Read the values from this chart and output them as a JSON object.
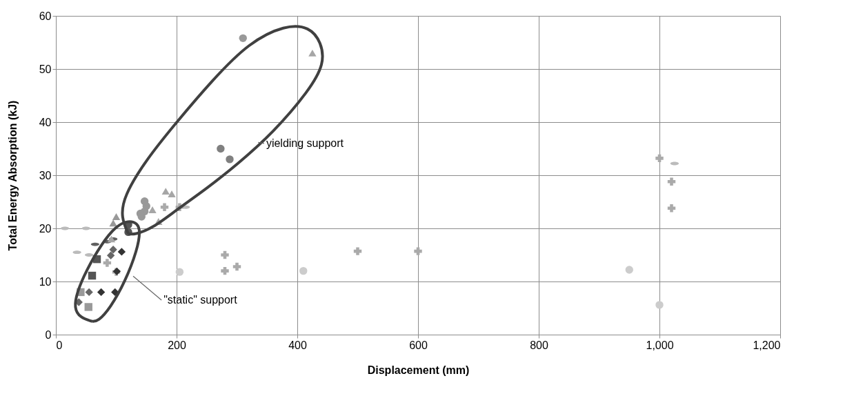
{
  "chart_data": {
    "type": "scatter",
    "xlabel": "Displacement (mm)",
    "ylabel": "Total Energy Absorption (kJ)",
    "xlim": [
      0,
      1200
    ],
    "xticks": [
      0,
      200,
      400,
      600,
      800,
      {
        "value": 1000,
        "label": "1,000"
      },
      {
        "value": 1200,
        "label": "1,200"
      }
    ],
    "ylim": [
      0,
      60
    ],
    "yticks": [
      0,
      10,
      20,
      30,
      40,
      50,
      60
    ],
    "grid": true,
    "series": [
      {
        "color": "#bbbbbb",
        "x": [
          15,
          50,
          35,
          55,
          215,
          1025
        ],
        "values": [
          20,
          20,
          15.5,
          15,
          24,
          32.2
        ]
      },
      {
        "color": "#606060",
        "x": [
          65,
          85,
          95
        ],
        "values": [
          17,
          17.5,
          18
        ]
      },
      {
        "color": "#cccccc",
        "marker": "circle",
        "x": [
          205,
          410,
          950,
          1000
        ],
        "values": [
          11.8,
          12,
          12.2,
          5.6
        ]
      },
      {
        "color": "#aaaaaa",
        "marker": "cross",
        "x": [
          180,
          205,
          280,
          300,
          500,
          600,
          1000,
          1020,
          85
        ],
        "values": [
          24,
          24,
          15,
          12.8,
          15.7,
          15.7,
          33.2,
          28.8,
          13.5
        ]
      },
      {
        "color": "#aaaaaa",
        "marker": "cross",
        "x": [
          280,
          1020,
          100
        ],
        "values": [
          12,
          23.8,
          11.8
        ]
      },
      {
        "color": "#999999",
        "marker": "circle",
        "x": [
          142,
          147,
          150,
          147,
          140
        ],
        "values": [
          22.2,
          23.2,
          24.2,
          25.1,
          22.8
        ]
      },
      {
        "color": "#999999",
        "marker": "triangle",
        "x": [
          100,
          95
        ],
        "values": [
          22.2,
          21
        ]
      },
      {
        "color": "#555555",
        "marker": "square",
        "x": [
          68,
          60
        ],
        "values": [
          14.2,
          11.1
        ]
      },
      {
        "color": "#666666",
        "marker": "diamond",
        "x": [
          95,
          91,
          38,
          55
        ],
        "values": [
          16,
          14.9,
          6.1,
          8
        ]
      },
      {
        "color": "#333333",
        "marker": "diamond",
        "x": [
          109,
          101,
          75,
          98
        ],
        "values": [
          15.6,
          11.9,
          8,
          8
        ]
      },
      {
        "color": "#999999",
        "marker": "square",
        "x": [
          41,
          54
        ],
        "values": [
          8,
          5.2
        ]
      },
      {
        "color": "#555555",
        "marker": "circle",
        "x": [
          120,
          120
        ],
        "values": [
          20.7,
          19.3
        ]
      },
      {
        "color": "#999999",
        "marker": "circle",
        "x": [
          310
        ],
        "values": [
          55.8
        ]
      },
      {
        "color": "#808080",
        "marker": "circle",
        "x": [
          273,
          288
        ],
        "values": [
          35,
          33
        ]
      },
      {
        "color": "#a6a6a6",
        "marker": "triangle",
        "x": [
          425,
          182,
          192,
          160,
          170,
          92
        ],
        "values": [
          53,
          27,
          26.5,
          23.5,
          21.3,
          18
        ]
      }
    ],
    "annotations": [
      "yielding support",
      "\"static\" support"
    ]
  }
}
